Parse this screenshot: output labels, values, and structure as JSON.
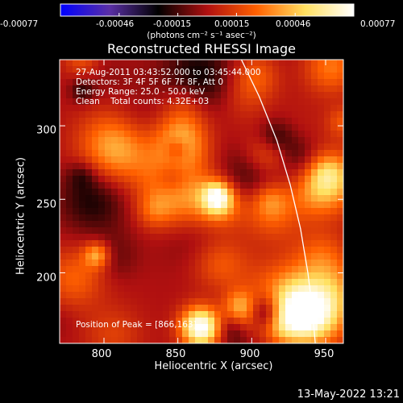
{
  "colorbar": {
    "tick_labels": [
      "-0.00077",
      "-0.00046",
      "-0.00015",
      "0.00015",
      "0.00046",
      "0.00077"
    ],
    "units_label": "(photons cm⁻² s⁻¹ asec⁻²)"
  },
  "title": "Reconstructed RHESSI Image",
  "annotations": {
    "time_range": "27-Aug-2011 03:43:52.000 to 03:45:44.000",
    "detectors": "Detectors: 3F 4F 5F 6F 7F 8F, Att 0",
    "energy_range": "Energy Range: 25.0 - 50.0 keV",
    "clean_counts": "Clean    Total counts: 4.32E+03",
    "peak_position": "Position of Peak = [866,163]"
  },
  "chart_data": {
    "type": "heatmap",
    "title": "Reconstructed RHESSI Image",
    "xlabel": "Heliocentric X (arcsec)",
    "ylabel": "Heliocentric Y (arcsec)",
    "xlim": [
      770,
      962
    ],
    "ylim": [
      152,
      345
    ],
    "x_ticks": [
      "800",
      "850",
      "900",
      "950"
    ],
    "y_ticks": [
      "200",
      "250",
      "300"
    ],
    "value_range": [
      -0.00077,
      0.00077
    ],
    "colormap": [
      "#0000ff",
      "#5a2fa6",
      "#000000",
      "#b01010",
      "#ff6000",
      "#ffe060",
      "#ffffff"
    ],
    "peak": [
      866,
      163
    ],
    "limb_curve": [
      [
        893,
        345
      ],
      [
        905,
        320
      ],
      [
        917,
        290
      ],
      [
        926,
        260
      ],
      [
        933,
        230
      ],
      [
        938,
        200
      ],
      [
        941,
        175
      ],
      [
        943,
        152
      ]
    ],
    "grid": false
  },
  "timestamp": "13-May-2022 13:21"
}
